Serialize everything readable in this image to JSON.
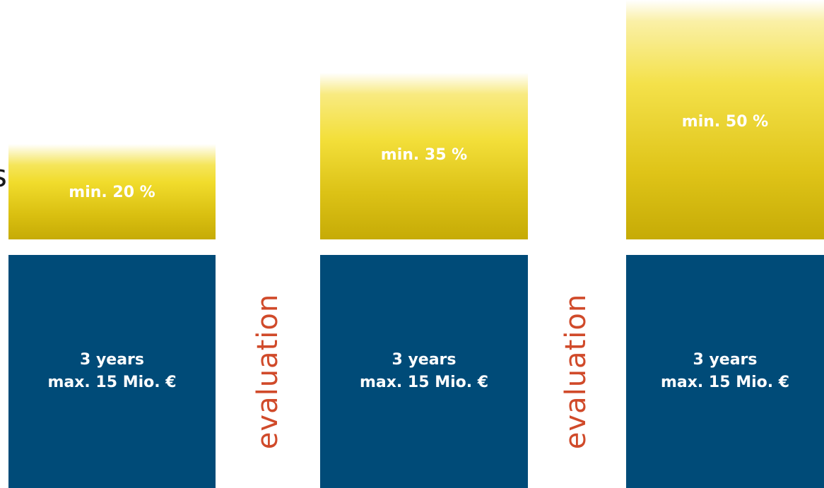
{
  "cut_glyph": "s",
  "stages": [
    {
      "share_label": "min. 20 %",
      "share_value": 20,
      "duration": "3 years",
      "budget": "max. 15 Mio. €"
    },
    {
      "share_label": "min. 35 %",
      "share_value": 35,
      "duration": "3 years",
      "budget": "max. 15 Mio. €"
    },
    {
      "share_label": "min. 50 %",
      "share_value": 50,
      "duration": "3 years",
      "budget": "max. 15 Mio. €"
    }
  ],
  "evaluations": [
    "evaluation",
    "evaluation"
  ],
  "colors": {
    "phase_blue": "#004b78",
    "share_gold": "#c6ab06",
    "share_yellow": "#f3df3a",
    "evaluation_text": "#d04a2a"
  }
}
